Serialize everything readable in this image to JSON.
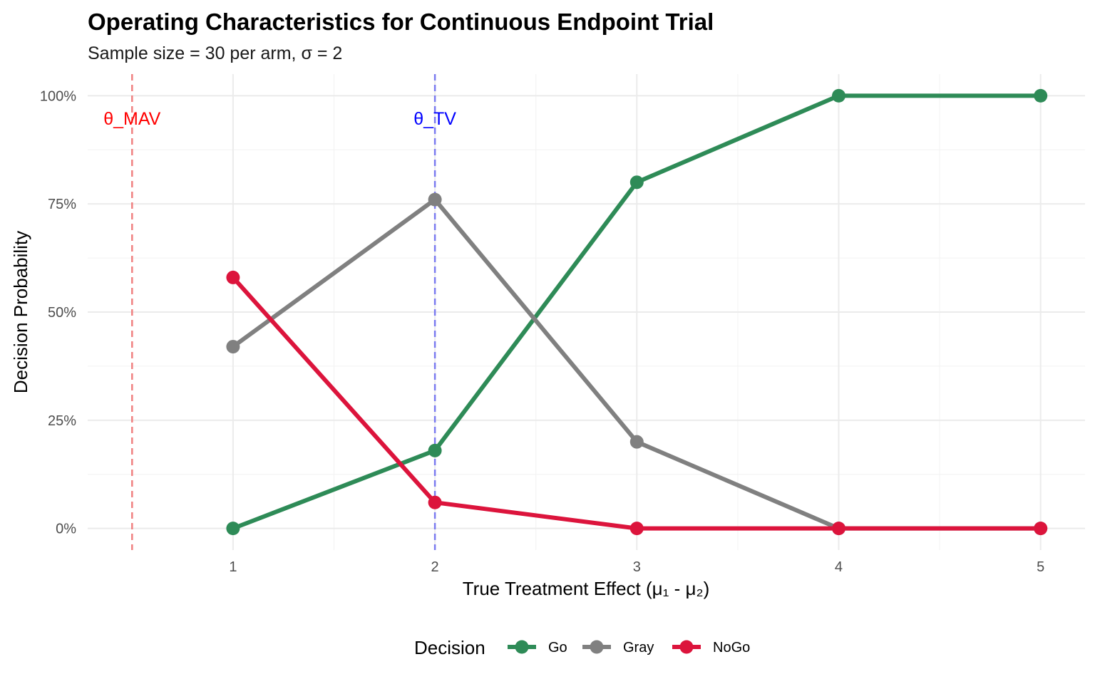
{
  "chart_data": {
    "type": "line",
    "title": "Operating Characteristics for Continuous Endpoint Trial",
    "subtitle": "Sample size = 30 per arm, σ = 2",
    "xlabel": "True Treatment Effect (μ₁ - μ₂)",
    "ylabel": "Decision Probability",
    "x": [
      1,
      2,
      3,
      4,
      5
    ],
    "xlim": [
      0.28,
      5.22
    ],
    "ylim": [
      -0.05,
      1.05
    ],
    "x_ticks": [
      1,
      2,
      3,
      4,
      5
    ],
    "x_tick_labels": [
      "1",
      "2",
      "3",
      "4",
      "5"
    ],
    "y_ticks": [
      0,
      0.25,
      0.5,
      0.75,
      1.0
    ],
    "y_tick_labels": [
      "0%",
      "25%",
      "50%",
      "75%",
      "100%"
    ],
    "grid": true,
    "series": [
      {
        "name": "Go",
        "color": "#2E8B57",
        "values": [
          0.0,
          0.18,
          0.8,
          1.0,
          1.0
        ]
      },
      {
        "name": "Gray",
        "color": "#808080",
        "values": [
          0.42,
          0.76,
          0.2,
          0.0,
          0.0
        ]
      },
      {
        "name": "NoGo",
        "color": "#DC143C",
        "values": [
          0.58,
          0.06,
          0.0,
          0.0,
          0.0
        ]
      }
    ],
    "reference_lines": [
      {
        "label": "θ_MAV",
        "x": 0.5,
        "color": "#FF0000",
        "line_color": "#F08080"
      },
      {
        "label": "θ_TV",
        "x": 2.0,
        "color": "#0000FF",
        "line_color": "#7B7BF0"
      }
    ],
    "legend": {
      "title": "Decision",
      "position": "bottom"
    }
  }
}
